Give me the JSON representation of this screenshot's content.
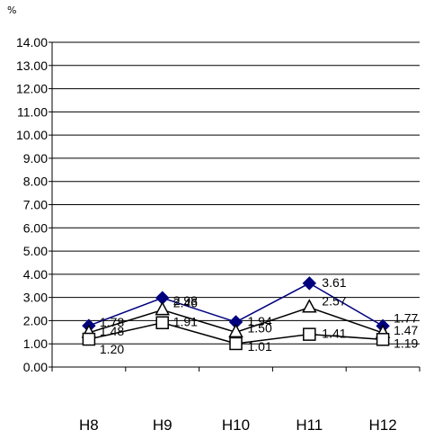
{
  "chart_data": {
    "type": "line",
    "ylabel": "%",
    "ylim": [
      0,
      14
    ],
    "y_ticks": [
      "0.00",
      "1.00",
      "2.00",
      "3.00",
      "4.00",
      "5.00",
      "6.00",
      "7.00",
      "8.00",
      "9.00",
      "10.00",
      "11.00",
      "12.00",
      "13.00",
      "14.00"
    ],
    "categories": [
      "H8",
      "H9",
      "H10",
      "H11",
      "H12"
    ],
    "grid": "horizontal",
    "legend": "none",
    "series": [
      {
        "values": [
          1.78,
          2.98,
          1.94,
          3.61,
          1.77
        ],
        "labels": [
          "1.78",
          "2.98",
          "1.94",
          "3.61",
          "1.77"
        ],
        "marker": "diamond",
        "color": "#00007f"
      },
      {
        "values": [
          1.48,
          2.46,
          1.5,
          2.57,
          1.47
        ],
        "labels": [
          "1.48",
          "2.46",
          "1.50",
          "2.57",
          "1.47"
        ],
        "marker": "triangle",
        "color": "#000000"
      },
      {
        "values": [
          1.2,
          1.91,
          1.01,
          1.41,
          1.19
        ],
        "labels": [
          "1.20",
          "1.91",
          "1.01",
          "1.41",
          "1.19"
        ],
        "marker": "square",
        "color": "#000000"
      }
    ]
  }
}
